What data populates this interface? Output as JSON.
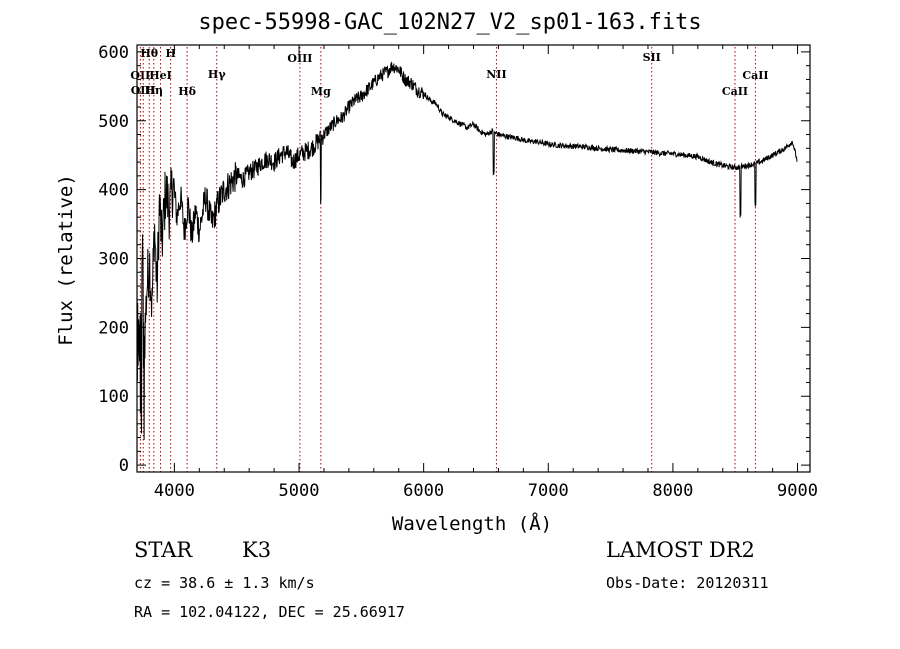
{
  "chart_data": {
    "type": "line",
    "title": "spec-55998-GAC_102N27_V2_sp01-163.fits",
    "xlabel": "Wavelength (Å)",
    "ylabel": "Flux (relative)",
    "xlim": [
      3700,
      9100
    ],
    "ylim": [
      -10,
      610
    ],
    "x_ticks": [
      4000,
      5000,
      6000,
      7000,
      8000,
      9000
    ],
    "y_ticks": [
      0,
      100,
      200,
      300,
      400,
      500,
      600
    ],
    "grid": false,
    "series": [
      {
        "x": [
          3700,
          3720,
          3740,
          3760,
          3780,
          3800,
          3820,
          3840,
          3860,
          3880,
          3900,
          3930,
          3960,
          3990,
          4020,
          4050,
          4080,
          4110,
          4140,
          4170,
          4200,
          4250,
          4300,
          4350,
          4400,
          4450,
          4500,
          4550,
          4600,
          4650,
          4700,
          4750,
          4800,
          4850,
          4900,
          4950,
          5000,
          5050,
          5100,
          5150,
          5200,
          5250,
          5300,
          5350,
          5400,
          5450,
          5500,
          5550,
          5600,
          5650,
          5700,
          5750,
          5800,
          5850,
          5900,
          5950,
          6000,
          6050,
          6100,
          6150,
          6200,
          6250,
          6300,
          6350,
          6400,
          6450,
          6500,
          6550,
          6600,
          6650,
          6700,
          6750,
          6800,
          6850,
          6900,
          6950,
          7000,
          7100,
          7200,
          7300,
          7400,
          7500,
          7600,
          7700,
          7800,
          7900,
          8000,
          8100,
          8200,
          8300,
          8400,
          8500,
          8600,
          8700,
          8800,
          8900,
          8960,
          9000
        ],
        "y": [
          250,
          150,
          330,
          180,
          260,
          300,
          230,
          350,
          250,
          380,
          320,
          400,
          370,
          410,
          360,
          390,
          340,
          380,
          330,
          370,
          340,
          390,
          350,
          380,
          400,
          410,
          420,
          415,
          425,
          430,
          440,
          445,
          440,
          450,
          455,
          440,
          450,
          455,
          460,
          470,
          480,
          490,
          500,
          505,
          520,
          530,
          535,
          545,
          555,
          565,
          570,
          580,
          575,
          560,
          555,
          545,
          540,
          530,
          525,
          510,
          505,
          500,
          495,
          490,
          495,
          485,
          480,
          485,
          480,
          478,
          476,
          475,
          472,
          470,
          470,
          468,
          466,
          464,
          463,
          462,
          460,
          458,
          457,
          456,
          455,
          453,
          452,
          450,
          448,
          440,
          435,
          432,
          435,
          440,
          450,
          460,
          470,
          440
        ]
      }
    ],
    "line_markers": [
      {
        "label": "Hθ",
        "x": 3798
      },
      {
        "label": "H",
        "x": 3970
      },
      {
        "label": "OII",
        "x": 3727
      },
      {
        "label": "HeI",
        "x": 3889
      },
      {
        "label": "OIII",
        "x": 3750
      },
      {
        "label": "Hη",
        "x": 3835
      },
      {
        "label": "Hδ",
        "x": 4102
      },
      {
        "label": "Hγ",
        "x": 4340
      },
      {
        "label": "OIII",
        "x": 5007
      },
      {
        "label": "Mg",
        "x": 5175
      },
      {
        "label": "NII",
        "x": 6584
      },
      {
        "label": "SII",
        "x": 7830
      },
      {
        "label": "CaII",
        "x": 8662
      },
      {
        "label": "CaII",
        "x": 8498
      }
    ]
  },
  "info": {
    "class": "STAR",
    "subclass": "K3",
    "survey": "LAMOST DR2",
    "cz": "cz = 38.6 ± 1.3 km/s",
    "obs_date": "Obs-Date: 20120311",
    "radec": "RA = 102.04122, DEC =  25.66917"
  }
}
